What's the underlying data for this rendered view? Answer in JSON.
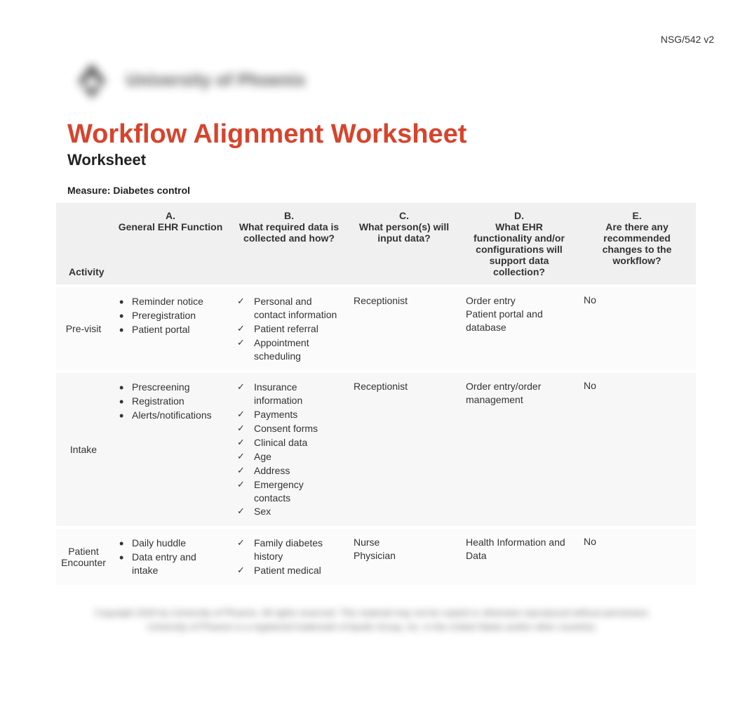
{
  "course_code": "NSG/542 v2",
  "logo_text": "University of Phoenix",
  "title": "Workflow Alignment Worksheet",
  "subtitle": "Worksheet",
  "measure_label": "Measure: Diabetes control",
  "colors": {
    "title": "#d7442c",
    "header_bg": "#f0f0f0",
    "row_bg_a": "#fbfbfb",
    "row_bg_b": "#f7f7f7",
    "text": "#333333"
  },
  "columns": {
    "activity": "Activity",
    "a": {
      "letter": "A.",
      "label": "General EHR Function"
    },
    "b": {
      "letter": "B.",
      "label": "What required data is collected and how?"
    },
    "c": {
      "letter": "C.",
      "label": "What person(s) will input data?"
    },
    "d": {
      "letter": "D.",
      "label": "What EHR functionality and/or configurations will support data collection?"
    },
    "e": {
      "letter": "E.",
      "label": "Are there any recommended changes to the workflow?"
    }
  },
  "rows": [
    {
      "activity": "Pre-visit",
      "a": [
        "Reminder notice",
        "Preregistration",
        "Patient portal"
      ],
      "b": [
        "Personal and contact information",
        "Patient referral",
        "Appointment scheduling"
      ],
      "c": [
        "Receptionist"
      ],
      "d": [
        "Order entry",
        "Patient portal and database"
      ],
      "e": "No"
    },
    {
      "activity": "Intake",
      "a": [
        "Prescreening",
        "Registration",
        "Alerts/notifications"
      ],
      "b": [
        "Insurance information",
        "Payments",
        "Consent forms",
        "Clinical data",
        "Age",
        "Address",
        "Emergency contacts",
        "Sex"
      ],
      "c": [
        "Receptionist"
      ],
      "d": [
        "Order entry/order management"
      ],
      "e": "No"
    },
    {
      "activity": "Patient Encounter",
      "a": [
        "Daily huddle",
        "Data entry and intake"
      ],
      "b": [
        "Family diabetes history",
        "Patient medical"
      ],
      "c": [
        "Nurse",
        "Physician"
      ],
      "d": [
        "Health Information and Data"
      ],
      "e": "No"
    }
  ],
  "footer_lines": [
    "Copyright 2020 by University of Phoenix. All rights reserved. This material may not be copied or otherwise reproduced without permission.",
    "University of Phoenix is a registered trademark of Apollo Group, Inc. in the United States and/or other countries."
  ]
}
